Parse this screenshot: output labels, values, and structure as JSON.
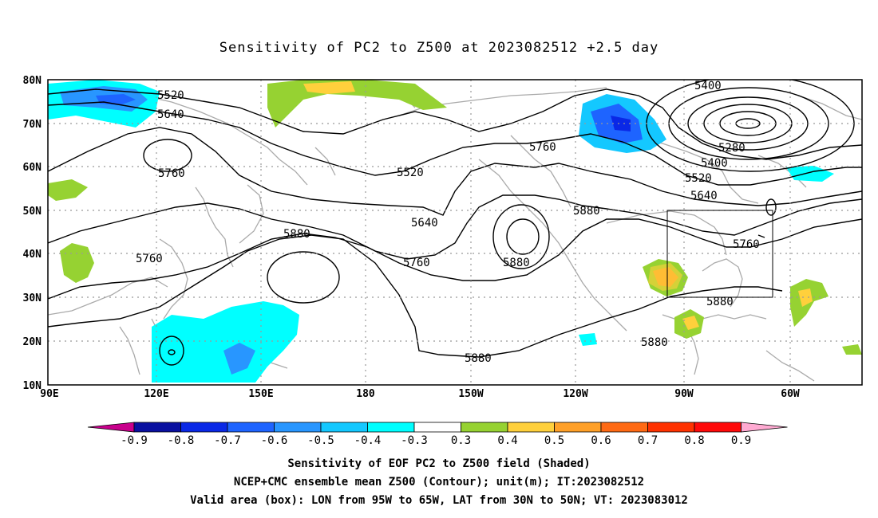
{
  "title": "Sensitivity of PC2 to Z500 at 2023082512 +2.5 day",
  "lat_labels": [
    "80N",
    "70N",
    "60N",
    "50N",
    "40N",
    "30N",
    "20N",
    "10N"
  ],
  "lon_labels": [
    "90E",
    "120E",
    "150E",
    "180",
    "150W",
    "120W",
    "90W",
    "60W"
  ],
  "contour_labels": [
    "5400",
    "5520",
    "5640",
    "5760",
    "5520",
    "5280",
    "5400",
    "5520",
    "5640",
    "5880",
    "5640",
    "5880",
    "5760",
    "5760",
    "5760",
    "5760",
    "5880",
    "5880",
    "5880"
  ],
  "colorbar": {
    "labels": [
      "-0.9",
      "-0.8",
      "-0.7",
      "-0.6",
      "-0.5",
      "-0.4",
      "-0.3",
      "0.3",
      "0.4",
      "0.5",
      "0.6",
      "0.7",
      "0.8",
      "0.9"
    ],
    "colors": [
      "#c8008c",
      "#0a10a0",
      "#0a28e6",
      "#1e64ff",
      "#2896ff",
      "#14c8ff",
      "#00ffff",
      "#ffffff",
      "#96d232",
      "#ffd03c",
      "#ffa028",
      "#ff6a14",
      "#ff3200",
      "#ff0a0a",
      "#ffaad2"
    ]
  },
  "valid_box": {
    "lon_min": "95W",
    "lon_max": "65W",
    "lat_min": "30N",
    "lat_max": "50N"
  },
  "captions": [
    "Sensitivity of EOF PC2 to Z500 field (Shaded)",
    "NCEP+CMC ensemble mean Z500 (Contour); unit(m); IT:2023082512",
    "Valid area (box): LON from 95W to 65W, LAT from 30N to 50N; VT: 2023083012"
  ]
}
